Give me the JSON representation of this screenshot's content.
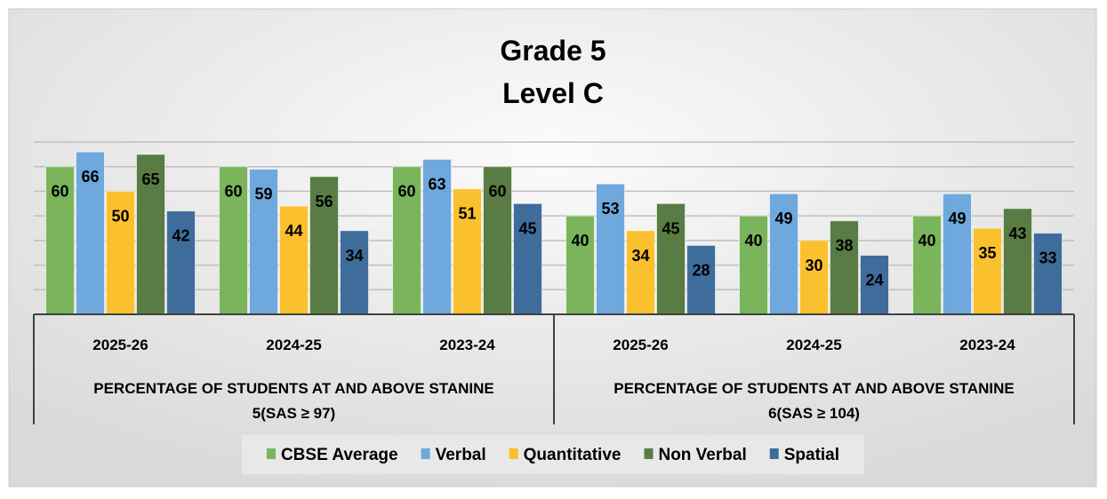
{
  "chart_data": {
    "type": "bar",
    "title": [
      "Grade 5",
      "Level C"
    ],
    "xlabel": "",
    "ylabel": "",
    "ylim": [
      0,
      70
    ],
    "grid": true,
    "legend_position": "bottom",
    "groups": [
      {
        "label": [
          "PERCENTAGE OF STUDENTS AT AND  ABOVE STANINE",
          "5(SAS ≥ 97)"
        ],
        "categories": [
          "2025-26",
          "2024-25",
          "2023-24"
        ]
      },
      {
        "label": [
          "PERCENTAGE OF STUDENTS AT AND  ABOVE STANINE",
          "6(SAS ≥ 104)"
        ],
        "categories": [
          "2025-26",
          "2024-25",
          "2023-24"
        ]
      }
    ],
    "series": [
      {
        "name": "CBSE Average",
        "color": "#7ab55c",
        "values": [
          60,
          60,
          60,
          40,
          40,
          40
        ]
      },
      {
        "name": "Verbal",
        "color": "#6fa8dc",
        "values": [
          66,
          59,
          63,
          53,
          49,
          49
        ]
      },
      {
        "name": "Quantitative",
        "color": "#fbc02d",
        "values": [
          50,
          44,
          51,
          34,
          30,
          35
        ]
      },
      {
        "name": "Non Verbal",
        "color": "#587c43",
        "values": [
          65,
          56,
          60,
          45,
          38,
          43
        ]
      },
      {
        "name": "Spatial",
        "color": "#3f6d9b",
        "values": [
          42,
          34,
          45,
          28,
          24,
          33
        ]
      }
    ]
  }
}
